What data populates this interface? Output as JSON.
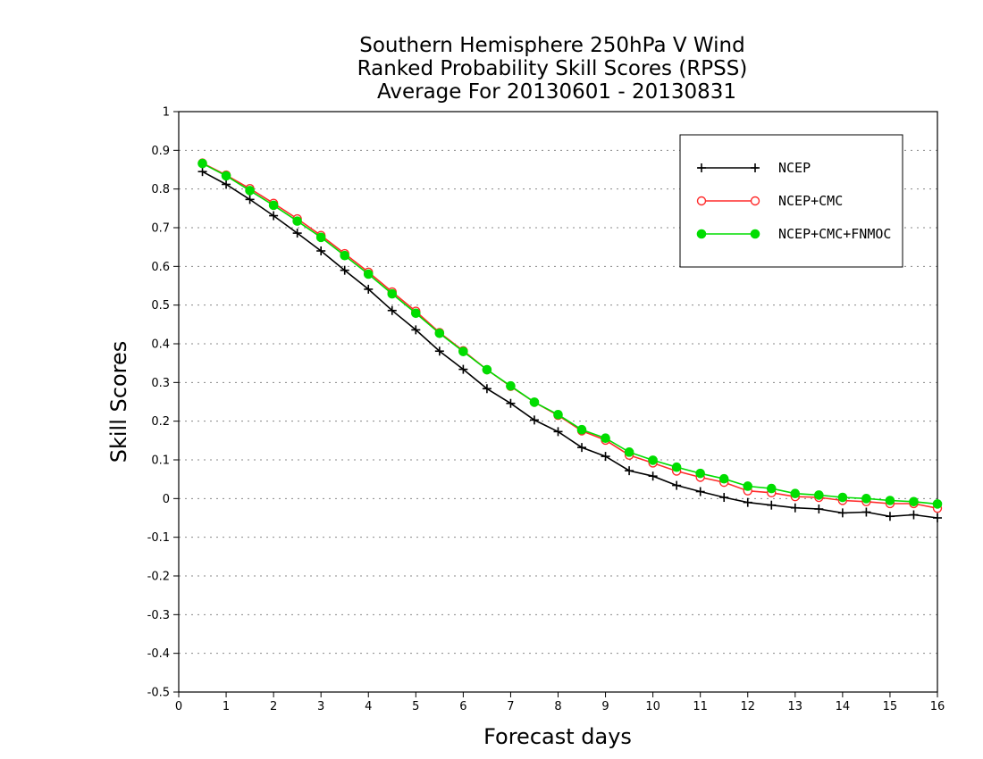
{
  "chart_data": {
    "type": "line",
    "title_lines": [
      "Southern Hemisphere 250hPa V Wind",
      "Ranked Probability Skill Scores (RPSS)",
      "Average For 20130601 - 20130831"
    ],
    "xlabel": "Forecast days",
    "ylabel": "Skill Scores",
    "xlim": [
      0,
      16
    ],
    "ylim": [
      -0.5,
      1
    ],
    "x_ticks": [
      "0",
      "1",
      "2",
      "3",
      "4",
      "5",
      "6",
      "7",
      "8",
      "9",
      "10",
      "11",
      "12",
      "13",
      "14",
      "15",
      "16"
    ],
    "y_ticks": [
      "1",
      "0.9",
      "0.8",
      "0.7",
      "0.6",
      "0.5",
      "0.4",
      "0.3",
      "0.2",
      "0.1",
      "0",
      "-0.1",
      "-0.2",
      "-0.3",
      "-0.4",
      "-0.5"
    ],
    "grid": true,
    "legend_position": "top-right",
    "x": [
      0.5,
      1,
      1.5,
      2,
      2.5,
      3,
      3.5,
      4,
      4.5,
      5,
      5.5,
      6,
      6.5,
      7,
      7.5,
      8,
      8.5,
      9,
      9.5,
      10,
      10.5,
      11,
      11.5,
      12,
      12.5,
      13,
      13.5,
      14,
      14.5,
      15,
      15.5,
      16
    ],
    "series": [
      {
        "name": "NCEP",
        "color": "#000000",
        "marker": "plus",
        "values": [
          0.845,
          0.812,
          0.773,
          0.731,
          0.686,
          0.64,
          0.59,
          0.541,
          0.486,
          0.436,
          0.381,
          0.334,
          0.284,
          0.246,
          0.203,
          0.173,
          0.132,
          0.109,
          0.072,
          0.058,
          0.034,
          0.018,
          0.003,
          -0.01,
          -0.017,
          -0.024,
          -0.027,
          -0.037,
          -0.035,
          -0.046,
          -0.042,
          -0.05
        ]
      },
      {
        "name": "NCEP+CMC",
        "color": "#ff2a2a",
        "marker": "open-circle",
        "values": [
          0.867,
          0.836,
          0.801,
          0.763,
          0.723,
          0.68,
          0.633,
          0.585,
          0.534,
          0.484,
          0.429,
          0.382,
          0.333,
          0.29,
          0.249,
          0.215,
          0.175,
          0.151,
          0.112,
          0.092,
          0.071,
          0.055,
          0.042,
          0.02,
          0.015,
          0.005,
          0.003,
          -0.005,
          -0.008,
          -0.013,
          -0.013,
          -0.025
        ]
      },
      {
        "name": "NCEP+CMC+FNMOC",
        "color": "#00dd00",
        "marker": "filled-circle",
        "values": [
          0.866,
          0.834,
          0.796,
          0.758,
          0.717,
          0.675,
          0.628,
          0.58,
          0.529,
          0.479,
          0.427,
          0.38,
          0.333,
          0.291,
          0.249,
          0.217,
          0.178,
          0.156,
          0.12,
          0.099,
          0.081,
          0.065,
          0.051,
          0.032,
          0.026,
          0.013,
          0.009,
          0.003,
          0.0,
          -0.005,
          -0.008,
          -0.014
        ]
      }
    ]
  }
}
